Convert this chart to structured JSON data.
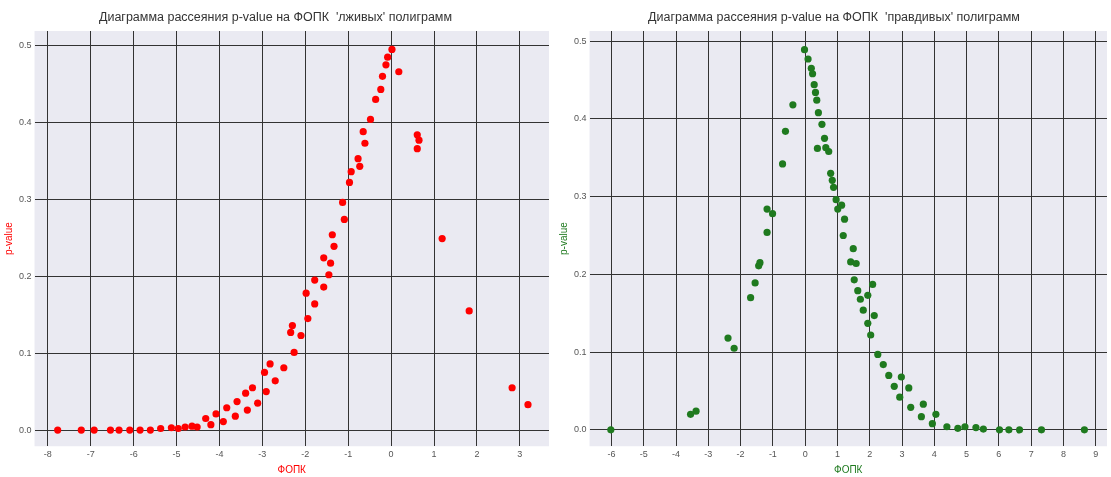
{
  "chart_data": [
    {
      "type": "scatter",
      "title": "Диаграмма рассеяния p-value на ФОПК  'лживых' полиграмм",
      "xlabel": "ФОПК",
      "ylabel": "p-value",
      "xlim": [
        -8.31,
        3.68
      ],
      "ylim": [
        -0.021,
        0.519
      ],
      "xticks": [
        -8,
        -7,
        -6,
        -5,
        -4,
        -3,
        -2,
        -1,
        0,
        1,
        2,
        3
      ],
      "yticks": [
        {
          "value": 0,
          "label": "0.0"
        },
        {
          "value": 0.1,
          "label": "0.1"
        },
        {
          "value": 0.2,
          "label": "0.2"
        },
        {
          "value": 0.3,
          "label": "0.3"
        },
        {
          "value": 0.4,
          "label": "0.4"
        },
        {
          "value": 0.5,
          "label": "0.5"
        }
      ],
      "grid": true,
      "marker": "circle",
      "series": [
        {
          "color": "#ff0000",
          "x": [
            -7.77,
            -7.22,
            -6.92,
            -6.54,
            -6.34,
            -6.09,
            -5.85,
            -5.61,
            -5.37,
            -5.12,
            -4.96,
            -4.8,
            -4.64,
            -4.52,
            -4.32,
            -4.08,
            -3.83,
            -3.59,
            -3.39,
            -3.23,
            -2.95,
            -2.82,
            -2.3,
            -2.34,
            -1.98,
            -1.78,
            -1.57,
            -1.37,
            -1.13,
            -0.93,
            -0.77,
            -0.65,
            -0.48,
            -0.36,
            -0.24,
            -0.2,
            -0.12,
            -0.08,
            0.02,
            0.18,
            -4.2,
            -3.91,
            -3.63,
            -3.35,
            -3.11,
            -2.91,
            -2.7,
            -2.5,
            -2.26,
            -2.1,
            -1.94,
            -1.78,
            -1.57,
            -1.45,
            -1.41,
            -1.33,
            -1.09,
            -0.97,
            -0.73,
            -0.61,
            0.61,
            0.65,
            0.61,
            1.19,
            1.82,
            2.82,
            3.19
          ],
          "values": [
            0,
            0,
            0,
            0,
            0,
            0,
            0,
            0,
            0.002,
            0.003,
            0.002,
            0.004,
            0.005,
            0.004,
            0.015,
            0.021,
            0.029,
            0.037,
            0.048,
            0.055,
            0.075,
            0.086,
            0.136,
            0.127,
            0.178,
            0.195,
            0.224,
            0.254,
            0.296,
            0.336,
            0.353,
            0.388,
            0.404,
            0.43,
            0.443,
            0.46,
            0.475,
            0.485,
            0.495,
            0.466,
            0.007,
            0.011,
            0.018,
            0.026,
            0.035,
            0.05,
            0.064,
            0.081,
            0.101,
            0.123,
            0.145,
            0.164,
            0.186,
            0.202,
            0.217,
            0.239,
            0.274,
            0.322,
            0.343,
            0.373,
            0.384,
            0.377,
            0.366,
            0.249,
            0.155,
            0.055,
            0.033
          ]
        }
      ]
    },
    {
      "type": "scatter",
      "title": "Диаграмма рассеяния p-value на ФОПК  'правдивых' полиграмм",
      "xlabel": "ФОПК",
      "ylabel": "p-value",
      "xlim": [
        -6.68,
        9.35
      ],
      "ylim": [
        -0.021,
        0.513
      ],
      "xticks": [
        -6,
        -5,
        -4,
        -3,
        -2,
        -1,
        0,
        1,
        2,
        3,
        4,
        5,
        6,
        7,
        8,
        9
      ],
      "yticks": [
        {
          "value": 0,
          "label": "0.0"
        },
        {
          "value": 0.1,
          "label": "0.1"
        },
        {
          "value": 0.2,
          "label": "0.2"
        },
        {
          "value": 0.3,
          "label": "0.3"
        },
        {
          "value": 0.4,
          "label": "0.4"
        },
        {
          "value": 0.5,
          "label": "0.5"
        }
      ],
      "grid": true,
      "marker": "circle",
      "series": [
        {
          "color": "#1f7a1f",
          "x": [
            -6.02,
            -3.55,
            -3.38,
            -2.39,
            -2.2,
            -1.69,
            -1.55,
            -1.44,
            -1.4,
            -1.18,
            -1.18,
            -1.01,
            -0.7,
            -0.61,
            -0.38,
            -0.02,
            0.09,
            0.19,
            0.23,
            0.28,
            0.32,
            0.36,
            0.41,
            0.38,
            0.52,
            0.6,
            0.64,
            0.73,
            0.79,
            0.84,
            0.88,
            0.96,
            1.01,
            1.13,
            1.22,
            1.18,
            1.49,
            1.41,
            1.58,
            1.52,
            1.63,
            1.71,
            1.94,
            2.09,
            1.8,
            1.94,
            2.14,
            2.03,
            2.25,
            2.42,
            2.59,
            2.76,
            2.98,
            3.21,
            2.93,
            3.27,
            3.66,
            3.6,
            3.94,
            4.05,
            4.39,
            4.73,
            4.95,
            5.29,
            5.52,
            6.02,
            6.31,
            6.64,
            7.32,
            8.65
          ],
          "values": [
            0,
            0.02,
            0.024,
            0.118,
            0.105,
            0.17,
            0.189,
            0.211,
            0.215,
            0.254,
            0.284,
            0.278,
            0.342,
            0.384,
            0.418,
            0.489,
            0.477,
            0.465,
            0.458,
            0.444,
            0.434,
            0.424,
            0.408,
            0.362,
            0.393,
            0.375,
            0.363,
            0.358,
            0.33,
            0.321,
            0.312,
            0.296,
            0.284,
            0.289,
            0.271,
            0.25,
            0.233,
            0.216,
            0.214,
            0.193,
            0.179,
            0.168,
            0.173,
            0.187,
            0.154,
            0.137,
            0.147,
            0.122,
            0.097,
            0.084,
            0.07,
            0.056,
            0.068,
            0.054,
            0.042,
            0.029,
            0.033,
            0.017,
            0.008,
            0.02,
            0.004,
            0.002,
            0.004,
            0.003,
            0.001,
            0,
            0,
            0,
            0,
            0
          ]
        }
      ]
    }
  ]
}
